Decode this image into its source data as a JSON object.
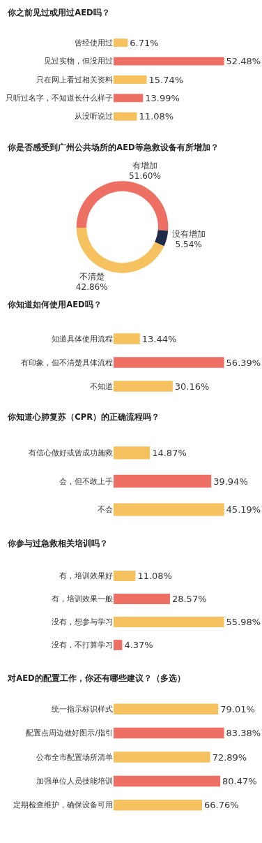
{
  "chart_data": [
    {
      "type": "bar",
      "orientation": "horizontal",
      "title": "你之前见过或用过AED吗？",
      "categories": [
        "曾经使用过",
        "见过实物，但没用过",
        "只在网上看过相关资料",
        "只听过名字，不知道长什么样子",
        "从没听说过"
      ],
      "values": [
        6.71,
        52.48,
        15.74,
        13.99,
        11.08
      ],
      "value_labels": [
        "6.71%",
        "52.48%",
        "15.74%",
        "13.99%",
        "11.08%"
      ],
      "colors": [
        "#f6c260",
        "#ee7065",
        "#f6c260",
        "#ee7065",
        "#f6c260"
      ],
      "legend": false
    },
    {
      "type": "donut",
      "title": "你是否感受到广州公共场所的AED等急救设备有所增加？",
      "categories": [
        "有增加",
        "没有增加",
        "不清楚"
      ],
      "values": [
        51.6,
        5.54,
        42.86
      ],
      "value_labels": [
        "51.60%",
        "5.54%",
        "42.86%"
      ],
      "colors": [
        "#ee7065",
        "#1f2a4a",
        "#f6c260"
      ],
      "legend": false
    },
    {
      "type": "bar",
      "orientation": "horizontal",
      "title": "你知道如何使用AED吗？",
      "categories": [
        "知道具体使用流程",
        "有印象，但不清楚具体流程",
        "不知道"
      ],
      "values": [
        13.44,
        56.39,
        30.16
      ],
      "value_labels": [
        "13.44%",
        "56.39%",
        "30.16%"
      ],
      "colors": [
        "#f6c260",
        "#ee7065",
        "#f6c260"
      ],
      "legend": false
    },
    {
      "type": "bar",
      "orientation": "horizontal",
      "title": "你知道心肺复苏（CPR）的正确流程吗？",
      "categories": [
        "有信心做好或曾成功施救",
        "会，但不敢上手",
        "不会"
      ],
      "values": [
        14.87,
        39.94,
        45.19
      ],
      "value_labels": [
        "14.87%",
        "39.94%",
        "45.19%"
      ],
      "colors": [
        "#f6c260",
        "#ee7065",
        "#f6c260"
      ],
      "legend": false
    },
    {
      "type": "bar",
      "orientation": "horizontal",
      "title": "你参与过急救相关培训吗？",
      "categories": [
        "有，培训效果好",
        "有，培训效果一般",
        "没有，想参与学习",
        "没有，不打算学习"
      ],
      "values": [
        11.08,
        28.57,
        55.98,
        4.37
      ],
      "value_labels": [
        "11.08%",
        "28.57%",
        "55.98%",
        "4.37%"
      ],
      "colors": [
        "#f6c260",
        "#ee7065",
        "#f6c260",
        "#ee7065"
      ],
      "legend": false
    },
    {
      "type": "bar",
      "orientation": "horizontal",
      "title": "对AED的配置工作，你还有哪些建议？（多选）",
      "categories": [
        "统一指示标识样式",
        "配置点周边做好图示/指引",
        "公布全市配置场所清单",
        "加强单位人员技能培训",
        "定期检查维护，确保设备可用"
      ],
      "values": [
        79.01,
        83.38,
        72.89,
        80.47,
        66.76
      ],
      "value_labels": [
        "79.01%",
        "83.38%",
        "72.89%",
        "80.47%",
        "66.76%"
      ],
      "colors": [
        "#f6c260",
        "#ee7065",
        "#f6c260",
        "#ee7065",
        "#f6c260"
      ],
      "legend": false
    }
  ]
}
